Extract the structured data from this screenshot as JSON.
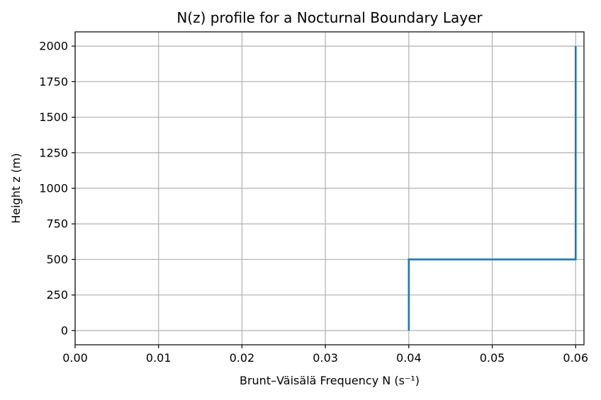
{
  "chart_data": {
    "type": "line",
    "title": "N(z) profile for a Nocturnal Boundary Layer",
    "xlabel": "Brunt–Väisälä Frequency N (s⁻¹)",
    "ylabel": "Height z (m)",
    "xlim": [
      0.0,
      0.061
    ],
    "ylim": [
      -100,
      2100
    ],
    "grid": true,
    "x_ticks": [
      0.0,
      0.01,
      0.02,
      0.03,
      0.04,
      0.05,
      0.06
    ],
    "x_tick_labels": [
      "0.00",
      "0.01",
      "0.02",
      "0.03",
      "0.04",
      "0.05",
      "0.06"
    ],
    "y_ticks": [
      0,
      250,
      500,
      750,
      1000,
      1250,
      1500,
      1750,
      2000
    ],
    "y_tick_labels": [
      "0",
      "250",
      "500",
      "750",
      "1000",
      "1250",
      "1500",
      "1750",
      "2000"
    ],
    "series": [
      {
        "color": "#1f77b4",
        "points": [
          {
            "x": 0.04,
            "y": 0
          },
          {
            "x": 0.04,
            "y": 500
          },
          {
            "x": 0.06,
            "y": 500
          },
          {
            "x": 0.06,
            "y": 2000
          }
        ]
      }
    ]
  }
}
